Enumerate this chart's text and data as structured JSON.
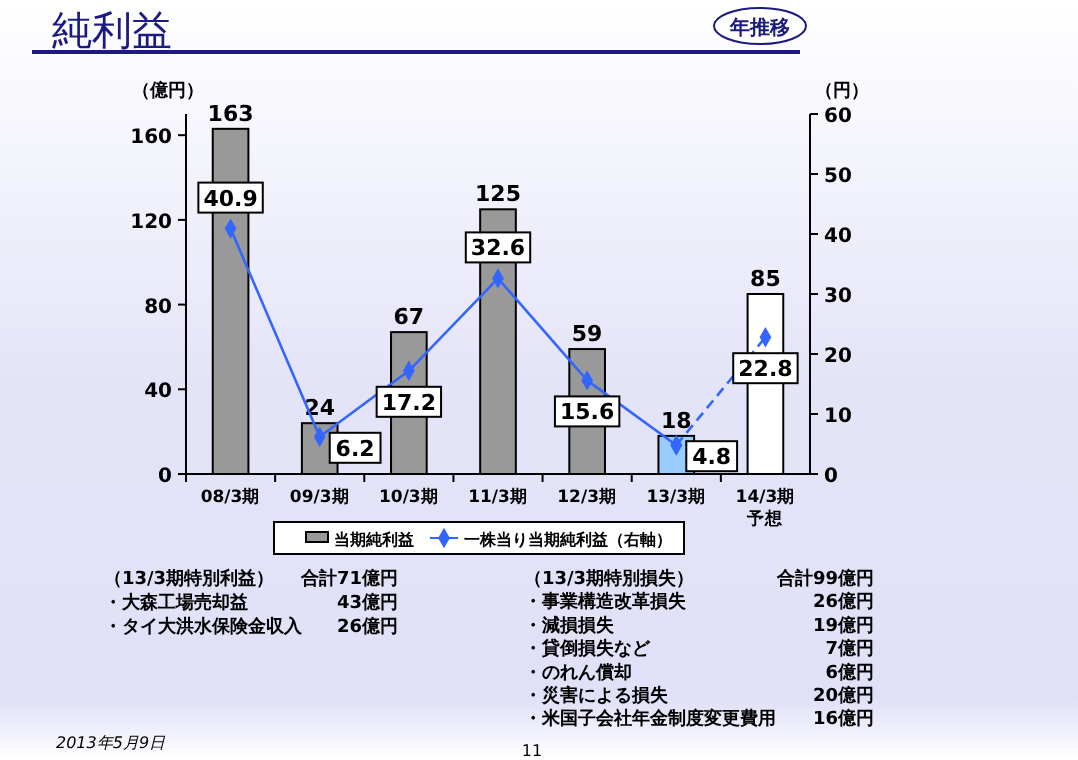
{
  "chart_data": {
    "type": "bar",
    "title": "純利益",
    "subtitle": "年推移",
    "categories": [
      "08/3期",
      "09/3期",
      "10/3期",
      "11/3期",
      "12/3期",
      "13/3期",
      "14/3期予想"
    ],
    "series": [
      {
        "name": "当期純利益",
        "color": "#999999",
        "colors": [
          "#999999",
          "#999999",
          "#999999",
          "#999999",
          "#999999",
          "#99ccff",
          "#ffffff"
        ],
        "values": [
          163,
          24,
          67,
          125,
          59,
          18,
          85
        ]
      },
      {
        "name": "一株当り当期純利益（右軸）",
        "type": "line",
        "axis": "y2",
        "color": "#3366ff",
        "marker": "diamond",
        "line_style": "solid",
        "values": [
          40.9,
          6.2,
          17.2,
          32.6,
          15.6,
          4.8,
          null
        ],
        "value_labels": [
          "40.9",
          "6.2",
          "17.2",
          "32.6",
          "15.6",
          "4.8",
          null
        ]
      },
      {
        "type": "line",
        "axis": "y2",
        "color": "#3366ff",
        "marker": "diamond",
        "line_style": "dashed",
        "values": [
          null,
          null,
          null,
          null,
          null,
          4.8,
          22.8
        ],
        "value_labels": [
          null,
          null,
          null,
          null,
          null,
          null,
          "22.8"
        ]
      }
    ],
    "ylabel": "（億円）",
    "y2label": "（円）",
    "ylim": [
      0,
      170
    ],
    "yticks": [
      0,
      40,
      80,
      120,
      160
    ],
    "y2lim": [
      0,
      60
    ],
    "y2ticks": [
      0,
      10,
      20,
      30,
      40,
      50,
      60
    ],
    "data_labels": true,
    "grid": false,
    "legend": "bottom",
    "annotations": [
      "（13/3期特別利益）",
      "合計71億円",
      "・大森工場売却益",
      "43億円",
      "・タイ大洪水保険金収入",
      "26億円",
      "（13/3期特別損失）",
      "合計99億円",
      "・事業構造改革損失",
      "26億円",
      "・減損損失",
      "19億円",
      "・貸倒損失など",
      "7億円",
      "・のれん償却",
      "6億円",
      "・災害による損失",
      "20億円",
      "・米国子会社年金制度変更費用",
      "16億円",
      "2013年5月9日",
      "11"
    ]
  }
}
